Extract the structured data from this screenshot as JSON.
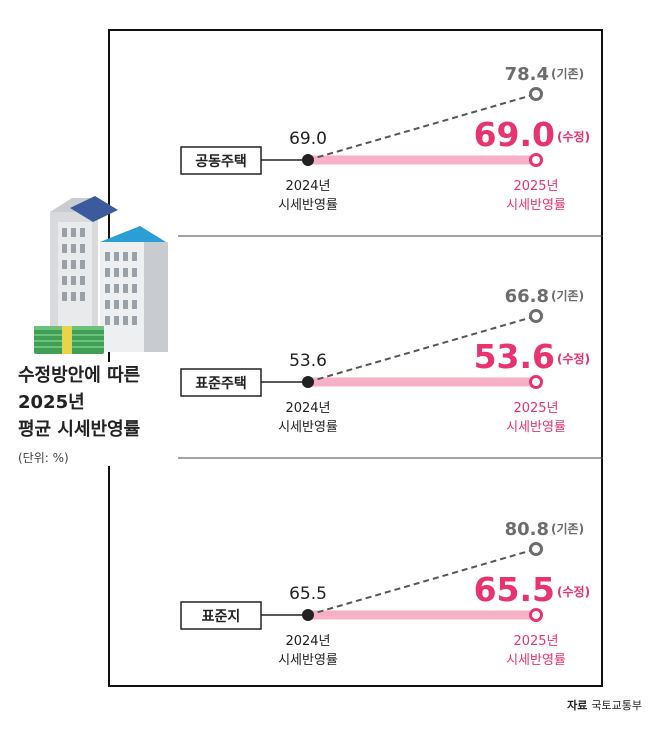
{
  "title_lines": [
    "수정방안에 따른",
    "2025년",
    "평균 시세반영률"
  ],
  "unit": "(단위: %)",
  "source": {
    "label": "자료",
    "value": "국토교통부"
  },
  "colors": {
    "accent": "#e8336e",
    "pink_bar": "#f6b1c6",
    "grey": "#6d6d6d",
    "dark": "#222222"
  },
  "chart_data": [
    {
      "type": "line",
      "category": "공동주택",
      "x": [
        "2024년 시세반영률",
        "2025년 시세반영률"
      ],
      "start_value": "69.0",
      "revised_value": "69.0",
      "revised_tag": "(수정)",
      "original_value": "78.4",
      "original_tag": "(기존)",
      "start_label": [
        "2024년",
        "시세반영률"
      ],
      "end_label": [
        "2025년",
        "시세반영률"
      ]
    },
    {
      "type": "line",
      "category": "표준주택",
      "x": [
        "2024년 시세반영률",
        "2025년 시세반영률"
      ],
      "start_value": "53.6",
      "revised_value": "53.6",
      "revised_tag": "(수정)",
      "original_value": "66.8",
      "original_tag": "(기존)",
      "start_label": [
        "2024년",
        "시세반영률"
      ],
      "end_label": [
        "2025년",
        "시세반영률"
      ]
    },
    {
      "type": "line",
      "category": "표준지",
      "x": [
        "2024년 시세반영률",
        "2025년 시세반영률"
      ],
      "start_value": "65.5",
      "revised_value": "65.5",
      "revised_tag": "(수정)",
      "original_value": "80.8",
      "original_tag": "(기존)",
      "start_label": [
        "2024년",
        "시세반영률"
      ],
      "end_label": [
        "2025년",
        "시세반영률"
      ]
    }
  ]
}
